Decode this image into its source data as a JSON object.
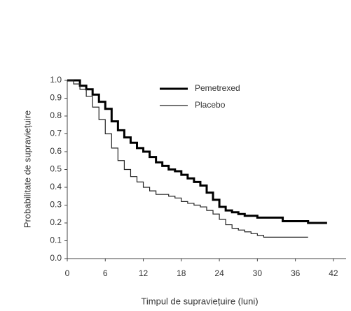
{
  "chart_data": {
    "type": "step",
    "x_label": "Timpul de supraviețuire (luni)",
    "y_label": "Probabilitate de supraviețuire",
    "xlim": [
      0,
      44
    ],
    "ylim": [
      0,
      1
    ],
    "xticks": [
      0,
      6,
      12,
      18,
      24,
      30,
      36,
      42
    ],
    "yticks": [
      {
        "value": 0,
        "label": "0.0"
      },
      0.1,
      0.2,
      0.3,
      0.4,
      0.5,
      0.6,
      0.7,
      0.8,
      0.9,
      {
        "value": 1,
        "label": "1.0"
      }
    ],
    "grid": false,
    "legend": "top",
    "series": [
      {
        "name": "Pemetrexed",
        "color": "#000000",
        "width": 3,
        "x": [
          0,
          1,
          2,
          3,
          4,
          5,
          6,
          7,
          8,
          9,
          10,
          11,
          12,
          13,
          14,
          15,
          16,
          17,
          18,
          19,
          20,
          21,
          22,
          23,
          24,
          25,
          26,
          27,
          28,
          30,
          32,
          34,
          36,
          38,
          41
        ],
        "values": [
          1.0,
          1.0,
          0.97,
          0.95,
          0.92,
          0.88,
          0.84,
          0.77,
          0.72,
          0.68,
          0.65,
          0.62,
          0.6,
          0.57,
          0.54,
          0.52,
          0.5,
          0.49,
          0.47,
          0.45,
          0.43,
          0.41,
          0.37,
          0.33,
          0.29,
          0.27,
          0.26,
          0.25,
          0.24,
          0.23,
          0.23,
          0.21,
          0.21,
          0.2,
          0.2
        ]
      },
      {
        "name": "Placebo",
        "color": "#222222",
        "width": 1.2,
        "x": [
          0,
          1,
          2,
          3,
          4,
          5,
          6,
          7,
          8,
          9,
          10,
          11,
          12,
          13,
          14,
          15,
          16,
          17,
          18,
          19,
          20,
          21,
          22,
          23,
          24,
          25,
          26,
          27,
          28,
          29,
          30,
          31,
          33,
          36,
          38
        ],
        "values": [
          1.0,
          0.98,
          0.95,
          0.91,
          0.85,
          0.78,
          0.7,
          0.62,
          0.55,
          0.5,
          0.46,
          0.43,
          0.4,
          0.38,
          0.36,
          0.36,
          0.35,
          0.34,
          0.32,
          0.31,
          0.3,
          0.29,
          0.27,
          0.25,
          0.22,
          0.19,
          0.17,
          0.16,
          0.15,
          0.14,
          0.13,
          0.12,
          0.12,
          0.12,
          0.12
        ]
      }
    ]
  }
}
